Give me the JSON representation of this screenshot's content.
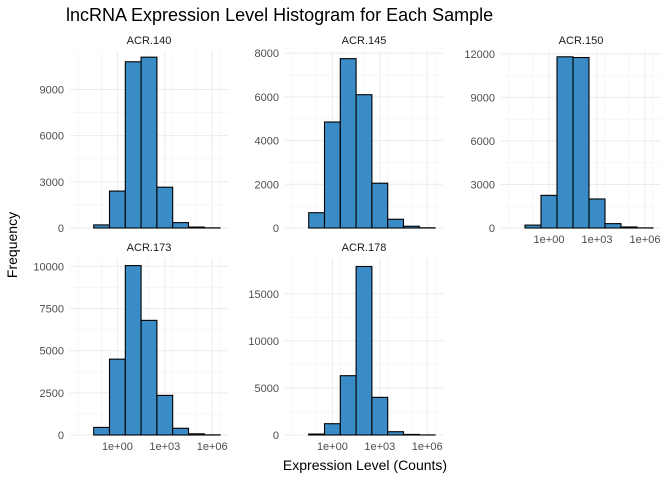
{
  "chart_data": {
    "type": "bar",
    "title": "lncRNA Expression Level Histogram for Each Sample",
    "xlabel": "Expression Level (Counts)",
    "ylabel": "Frequency",
    "x_scale": "log10",
    "x_tick_labels": [
      "1e+00",
      "1e+03",
      "1e+06"
    ],
    "bin_centers_log10": [
      -2,
      -1,
      0,
      1,
      2,
      3,
      4,
      5,
      6
    ],
    "bar_color": "#3A8CC6",
    "bar_edge_color": "#000000",
    "grid": true,
    "panels": [
      {
        "name": "ACR.140",
        "ylim": [
          0,
          11500
        ],
        "yticks": [
          0,
          3000,
          6000,
          9000
        ],
        "y_tick_labels": [
          "0",
          "3000",
          "6000",
          "9000"
        ],
        "values": [
          0,
          200,
          2400,
          10800,
          11100,
          2650,
          350,
          60,
          10
        ]
      },
      {
        "name": "ACR.145",
        "ylim": [
          0,
          8100
        ],
        "yticks": [
          0,
          2000,
          4000,
          6000,
          8000
        ],
        "y_tick_labels": [
          "0",
          "2000",
          "4000",
          "6000",
          "8000"
        ],
        "values": [
          0,
          700,
          4850,
          7750,
          6100,
          2050,
          400,
          80,
          10
        ]
      },
      {
        "name": "ACR.150",
        "ylim": [
          0,
          12200
        ],
        "yticks": [
          0,
          3000,
          6000,
          9000,
          12000
        ],
        "y_tick_labels": [
          "0",
          "3000",
          "6000",
          "9000",
          "12000"
        ],
        "values": [
          0,
          200,
          2250,
          11800,
          11750,
          2000,
          300,
          70,
          10
        ]
      },
      {
        "name": "ACR.173",
        "ylim": [
          0,
          10500
        ],
        "yticks": [
          0,
          2500,
          5000,
          7500,
          10000
        ],
        "y_tick_labels": [
          "0",
          "2500",
          "5000",
          "7500",
          "10000"
        ],
        "values": [
          0,
          450,
          4500,
          10050,
          6800,
          2350,
          400,
          70,
          10
        ]
      },
      {
        "name": "ACR.178",
        "ylim": [
          0,
          18800
        ],
        "yticks": [
          0,
          5000,
          10000,
          15000
        ],
        "y_tick_labels": [
          "0",
          "5000",
          "10000",
          "15000"
        ],
        "values": [
          0,
          100,
          1200,
          6300,
          17900,
          4000,
          350,
          60,
          10
        ]
      }
    ]
  }
}
